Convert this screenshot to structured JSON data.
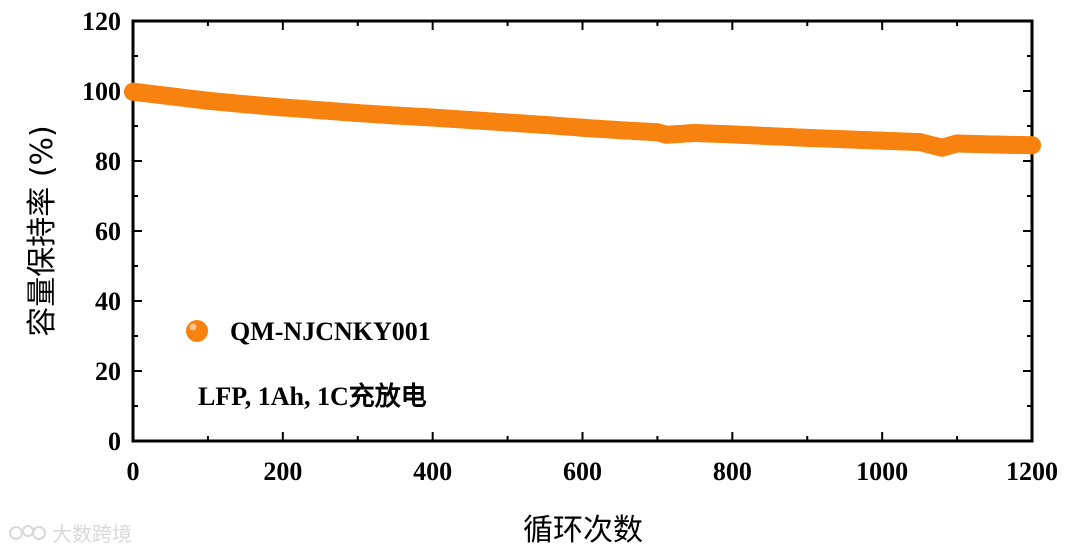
{
  "chart_data": {
    "type": "scatter",
    "xlabel": "循环次数",
    "ylabel": "容量保持率 (%)",
    "xlim": [
      0,
      1200
    ],
    "ylim": [
      0,
      120
    ],
    "xticks": [
      "0",
      "200",
      "400",
      "600",
      "800",
      "1000",
      "1200"
    ],
    "yticks": [
      "0",
      "20",
      "40",
      "60",
      "80",
      "100",
      "120"
    ],
    "grid": false,
    "legend_position": "lower-left",
    "series": [
      {
        "name": "QM-NJCNKY001",
        "color": "#F7820F",
        "x": [
          0,
          50,
          100,
          150,
          200,
          250,
          300,
          350,
          400,
          450,
          500,
          550,
          600,
          650,
          700,
          712,
          750,
          800,
          850,
          900,
          950,
          1000,
          1050,
          1080,
          1100,
          1150,
          1200
        ],
        "y": [
          99.8,
          98.5,
          97.2,
          96.2,
          95.3,
          94.5,
          93.7,
          93.0,
          92.4,
          91.7,
          91.0,
          90.3,
          89.5,
          88.8,
          88.2,
          87.5,
          88.0,
          87.6,
          87.1,
          86.6,
          86.2,
          85.8,
          85.4,
          83.8,
          85.0,
          84.7,
          84.5
        ]
      }
    ],
    "annotations": [
      "LFP, 1Ah, 1C充放电"
    ]
  },
  "watermark": "大数跨境"
}
